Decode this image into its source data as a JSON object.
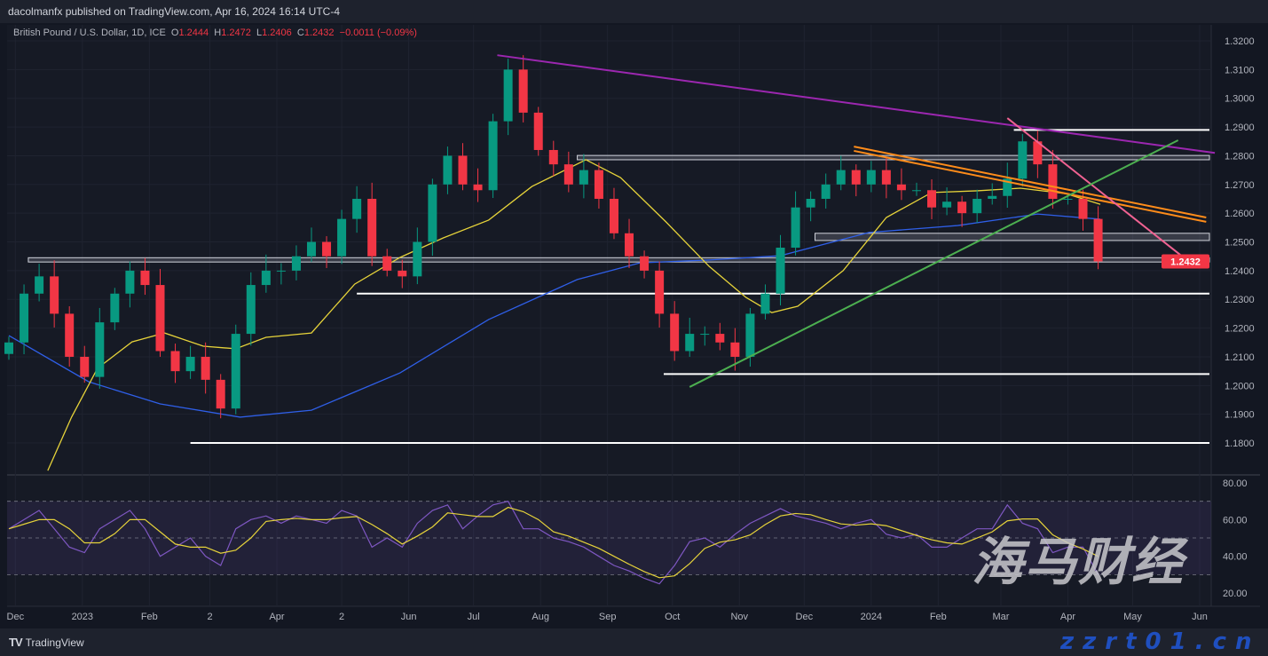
{
  "header": {
    "publisher_line": "dacolmanfx published on TradingView.com, Apr 16, 2024 16:14 UTC-4"
  },
  "legend": {
    "symbol": "British Pound / U.S. Dollar, 1D, ICE",
    "open_label": "O",
    "open": "1.2444",
    "high_label": "H",
    "high": "1.2472",
    "low_label": "L",
    "low": "1.2406",
    "close_label": "C",
    "close": "1.2432",
    "change": "−0.0011 (−0.09%)"
  },
  "footer": {
    "brand": "TradingView",
    "logo_text": "TV"
  },
  "watermark": {
    "text": "海马财经",
    "url": "zzrt01.cn"
  },
  "colors": {
    "up": "#089981",
    "down": "#f23645",
    "ma_fast": "#e6d33a",
    "ma_slow": "#2f5fe8",
    "rsi": "#7e57c2",
    "rsi_ma": "#e6d33a",
    "purple_trend": "#9c27b0",
    "orange_trend": "#ff8c1a",
    "pink_trend": "#f06292",
    "green_trend": "#4caf50",
    "level": "#ffffff",
    "last_price_bg": "#f23645"
  },
  "chart_data": {
    "type": "candlestick",
    "symbol": "GBPUSD",
    "price_axis": {
      "ylim": [
        1.175,
        1.3245
      ],
      "ticks": [
        "1.3200",
        "1.3100",
        "1.3000",
        "1.2900",
        "1.2800",
        "1.2700",
        "1.2600",
        "1.2500",
        "1.2400",
        "1.2300",
        "1.2200",
        "1.2100",
        "1.2000",
        "1.1900",
        "1.1800"
      ]
    },
    "last_price": "1.2432",
    "time_axis": {
      "range": [
        "2022-11-28",
        "2024-06-10"
      ],
      "ticks": [
        {
          "label": "Dec",
          "date": "2022-12-01"
        },
        {
          "label": "2023",
          "date": "2023-01-01"
        },
        {
          "label": "Feb",
          "date": "2023-02-01"
        },
        {
          "label": "2",
          "date": "2023-03-01"
        },
        {
          "label": "Apr",
          "date": "2023-04-01"
        },
        {
          "label": "2",
          "date": "2023-05-01"
        },
        {
          "label": "Jun",
          "date": "2023-06-01"
        },
        {
          "label": "Jul",
          "date": "2023-07-01"
        },
        {
          "label": "Aug",
          "date": "2023-08-01"
        },
        {
          "label": "Sep",
          "date": "2023-09-01"
        },
        {
          "label": "Oct",
          "date": "2023-10-01"
        },
        {
          "label": "Nov",
          "date": "2023-11-01"
        },
        {
          "label": "Dec",
          "date": "2023-12-01"
        },
        {
          "label": "2024",
          "date": "2024-01-01"
        },
        {
          "label": "Feb",
          "date": "2024-02-01"
        },
        {
          "label": "Mar",
          "date": "2024-03-01"
        },
        {
          "label": "Apr",
          "date": "2024-04-01"
        },
        {
          "label": "May",
          "date": "2024-05-01"
        },
        {
          "label": "Jun",
          "date": "2024-06-01"
        }
      ]
    },
    "closes": [
      1.215,
      1.232,
      1.238,
      1.225,
      1.21,
      1.203,
      1.222,
      1.232,
      1.24,
      1.235,
      1.212,
      1.205,
      1.21,
      1.202,
      1.192,
      1.218,
      1.235,
      1.24,
      1.24,
      1.245,
      1.25,
      1.245,
      1.258,
      1.265,
      1.245,
      1.24,
      1.238,
      1.25,
      1.27,
      1.28,
      1.27,
      1.268,
      1.292,
      1.31,
      1.295,
      1.282,
      1.277,
      1.27,
      1.275,
      1.265,
      1.253,
      1.245,
      1.24,
      1.225,
      1.212,
      1.218,
      1.218,
      1.215,
      1.21,
      1.225,
      1.232,
      1.248,
      1.262,
      1.265,
      1.27,
      1.275,
      1.27,
      1.275,
      1.27,
      1.268,
      1.268,
      1.262,
      1.264,
      1.26,
      1.265,
      1.266,
      1.272,
      1.285,
      1.277,
      1.265,
      1.265,
      1.258,
      1.2432
    ],
    "close_dates_weekly_from": "2022-11-28",
    "ma_fast": [
      [
        "2022-12-16",
        1.1704
      ],
      [
        "2022-12-27",
        1.189
      ],
      [
        "2023-01-08",
        1.206
      ],
      [
        "2023-01-24",
        1.2152
      ],
      [
        "2023-02-08",
        1.2183
      ],
      [
        "2023-02-26",
        1.2137
      ],
      [
        "2023-03-13",
        1.2128
      ],
      [
        "2023-03-27",
        1.2168
      ],
      [
        "2023-04-17",
        1.2183
      ],
      [
        "2023-05-07",
        1.2353
      ],
      [
        "2023-05-28",
        1.2446
      ],
      [
        "2023-06-17",
        1.2514
      ],
      [
        "2023-07-08",
        1.2576
      ],
      [
        "2023-07-28",
        1.2693
      ],
      [
        "2023-08-22",
        1.2786
      ],
      [
        "2023-09-07",
        1.2724
      ],
      [
        "2023-09-28",
        1.257
      ],
      [
        "2023-10-18",
        1.2415
      ],
      [
        "2023-11-04",
        1.2307
      ],
      [
        "2023-11-16",
        1.2254
      ],
      [
        "2023-11-28",
        1.2276
      ],
      [
        "2023-12-19",
        1.24
      ],
      [
        "2024-01-08",
        1.2585
      ],
      [
        "2024-01-29",
        1.2672
      ],
      [
        "2024-02-19",
        1.2678
      ],
      [
        "2024-03-10",
        1.2687
      ],
      [
        "2024-03-31",
        1.2668
      ],
      [
        "2024-04-16",
        1.2631
      ]
    ],
    "ma_slow": [
      [
        "2022-11-28",
        1.2174
      ],
      [
        "2023-01-04",
        1.2013
      ],
      [
        "2023-02-06",
        1.1936
      ],
      [
        "2023-03-15",
        1.189
      ],
      [
        "2023-04-17",
        1.1914
      ],
      [
        "2023-05-28",
        1.2044
      ],
      [
        "2023-07-08",
        1.223
      ],
      [
        "2023-08-18",
        1.2369
      ],
      [
        "2023-09-16",
        1.2427
      ],
      [
        "2023-10-18",
        1.2437
      ],
      [
        "2023-11-20",
        1.2452
      ],
      [
        "2023-12-31",
        1.2533
      ],
      [
        "2024-02-10",
        1.2557
      ],
      [
        "2024-03-18",
        1.2597
      ],
      [
        "2024-04-16",
        1.2579
      ]
    ],
    "drawings": {
      "trendlines": [
        {
          "name": "purple",
          "from": [
            "2023-07-12",
            1.315
          ],
          "to": [
            "2024-06-08",
            1.281
          ]
        },
        {
          "name": "orange",
          "from": [
            "2023-12-24",
            1.2832
          ],
          "to": [
            "2024-06-04",
            1.2585
          ]
        },
        {
          "name": "orange",
          "from": [
            "2023-12-24",
            1.2817
          ],
          "to": [
            "2024-06-04",
            1.257
          ]
        },
        {
          "name": "pink",
          "from": [
            "2024-03-04",
            1.2931
          ],
          "to": [
            "2024-05-23",
            1.2455
          ]
        },
        {
          "name": "green",
          "from": [
            "2023-10-09",
            1.1995
          ],
          "to": [
            "2024-05-22",
            1.2854
          ]
        }
      ],
      "levels": [
        {
          "price": 1.289,
          "from": "2024-03-07"
        },
        {
          "price": 1.232,
          "from": "2023-05-08"
        },
        {
          "price": 1.204,
          "from": "2023-09-27"
        },
        {
          "price": 1.18,
          "from": "2023-02-20"
        }
      ],
      "zones": [
        {
          "top": 1.2801,
          "bottom": 1.2786,
          "from": "2023-08-18"
        },
        {
          "top": 1.253,
          "bottom": 1.2505,
          "from": "2023-12-06"
        },
        {
          "top": 1.2445,
          "bottom": 1.243,
          "from": "2022-12-07"
        }
      ]
    },
    "rsi": {
      "ylim": [
        10,
        85
      ],
      "ticks": [
        "80.00",
        "60.00",
        "40.00",
        "20.00"
      ],
      "bands": [
        30,
        50,
        70
      ],
      "values": [
        55,
        60,
        65,
        55,
        45,
        42,
        55,
        60,
        65,
        55,
        40,
        45,
        50,
        40,
        35,
        55,
        60,
        62,
        58,
        62,
        60,
        58,
        65,
        62,
        45,
        50,
        45,
        58,
        65,
        68,
        55,
        62,
        68,
        70,
        55,
        55,
        50,
        48,
        45,
        40,
        35,
        32,
        28,
        25,
        35,
        48,
        50,
        45,
        52,
        58,
        62,
        66,
        62,
        60,
        58,
        55,
        58,
        60,
        52,
        50,
        52,
        45,
        45,
        50,
        55,
        55,
        68,
        58,
        55,
        42,
        45,
        45,
        30
      ]
    }
  }
}
